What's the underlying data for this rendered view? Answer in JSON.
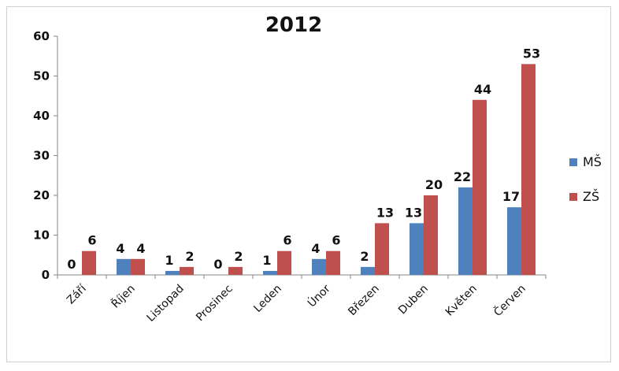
{
  "chart_data": {
    "type": "bar",
    "title": "2012",
    "xlabel": "",
    "ylabel": "",
    "ylim": [
      0,
      60
    ],
    "yticks": [
      0,
      10,
      20,
      30,
      40,
      50,
      60
    ],
    "grid": false,
    "legend_position": "right",
    "categories": [
      "Září",
      "Říjen",
      "Listopad",
      "Prosinec",
      "Leden",
      "Únor",
      "Březen",
      "Duben",
      "Květen",
      "Červen"
    ],
    "series": [
      {
        "name": "MŠ",
        "color": "#4f81bd",
        "values": [
          0,
          4,
          1,
          0,
          1,
          4,
          2,
          13,
          22,
          17
        ]
      },
      {
        "name": "ZŠ",
        "color": "#c0504d",
        "values": [
          6,
          4,
          2,
          2,
          6,
          6,
          13,
          20,
          44,
          53
        ]
      }
    ]
  }
}
